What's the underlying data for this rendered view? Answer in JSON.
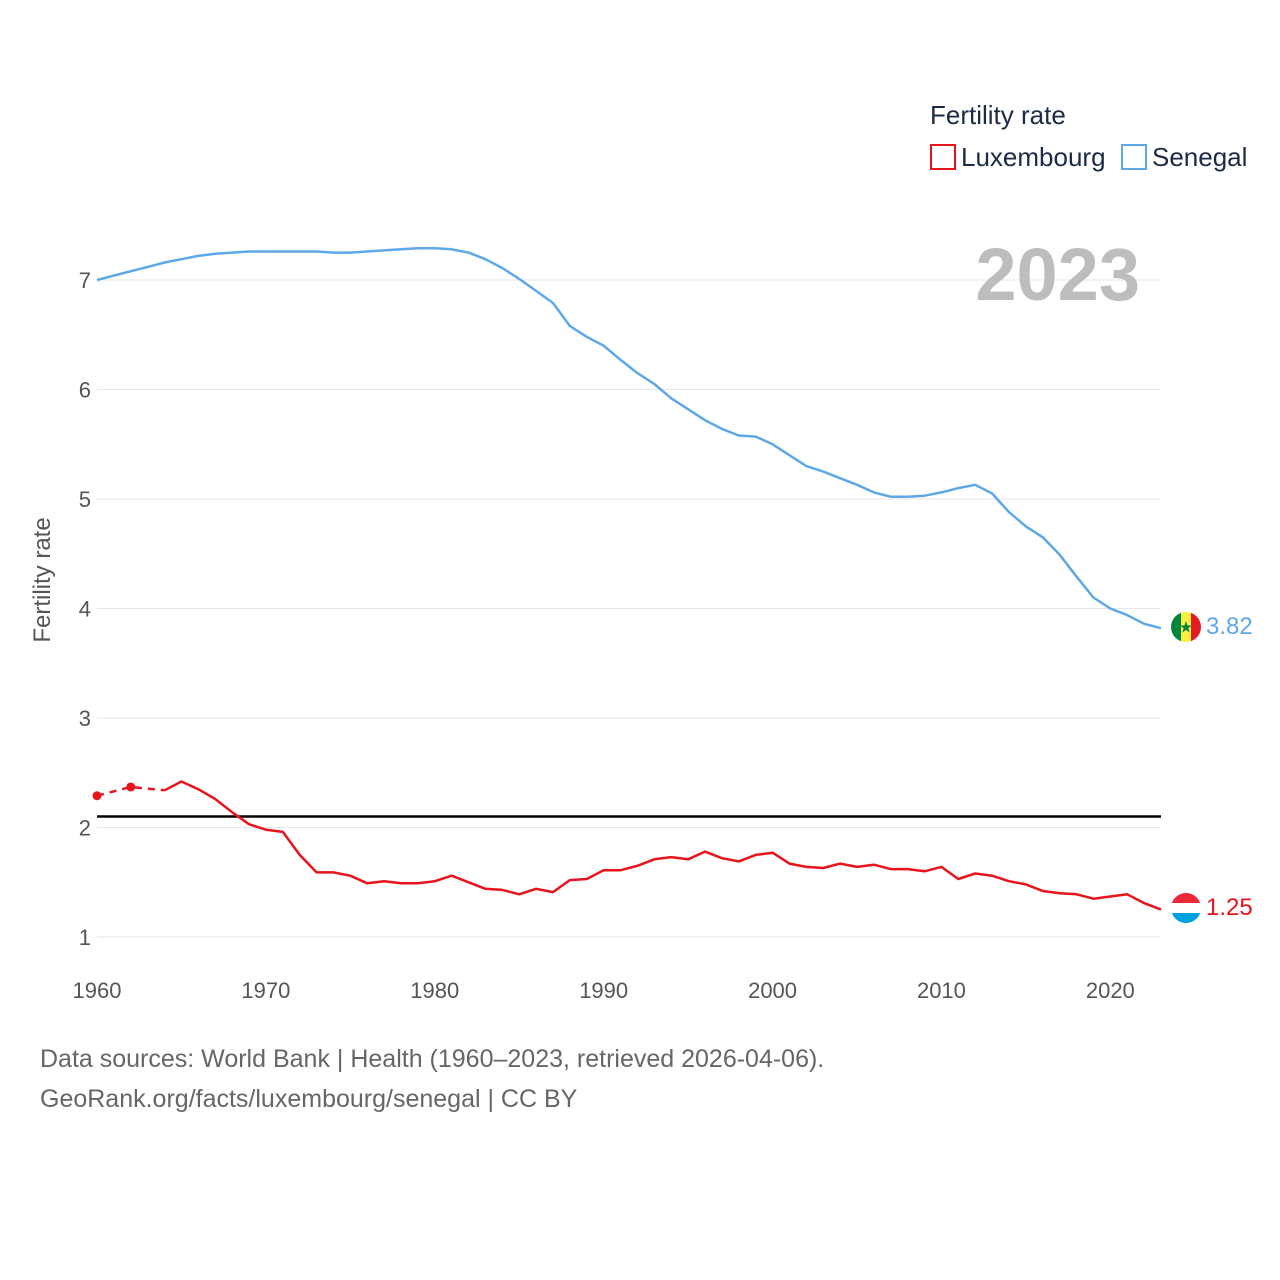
{
  "chart_data": {
    "type": "line",
    "title": "Fertility rate",
    "ylabel": "Fertility rate",
    "xlabel": "",
    "year_label": "2023",
    "xlim": [
      1960,
      2023
    ],
    "ylim": [
      0.85,
      7.6
    ],
    "x_ticks": [
      1960,
      1970,
      1980,
      1990,
      2000,
      2010,
      2020
    ],
    "y_ticks": [
      1,
      2,
      3,
      4,
      5,
      6,
      7
    ],
    "reference_line": {
      "value": 2.1,
      "color": "#000000"
    },
    "legend_position": "top-right",
    "series": [
      {
        "name": "Luxembourg",
        "color": "#e8141c",
        "end_label": "1.25",
        "dashed_points": [
          [
            1960,
            2.29
          ],
          [
            1962,
            2.37
          ],
          [
            1964,
            2.34
          ]
        ],
        "points": [
          [
            1964,
            2.34
          ],
          [
            1965,
            2.42
          ],
          [
            1966,
            2.35
          ],
          [
            1967,
            2.26
          ],
          [
            1968,
            2.14
          ],
          [
            1969,
            2.03
          ],
          [
            1970,
            1.98
          ],
          [
            1971,
            1.96
          ],
          [
            1972,
            1.75
          ],
          [
            1973,
            1.59
          ],
          [
            1974,
            1.59
          ],
          [
            1975,
            1.56
          ],
          [
            1976,
            1.49
          ],
          [
            1977,
            1.51
          ],
          [
            1978,
            1.49
          ],
          [
            1979,
            1.49
          ],
          [
            1980,
            1.51
          ],
          [
            1981,
            1.56
          ],
          [
            1982,
            1.5
          ],
          [
            1983,
            1.44
          ],
          [
            1984,
            1.43
          ],
          [
            1985,
            1.39
          ],
          [
            1986,
            1.44
          ],
          [
            1987,
            1.41
          ],
          [
            1988,
            1.52
          ],
          [
            1989,
            1.53
          ],
          [
            1990,
            1.61
          ],
          [
            1991,
            1.61
          ],
          [
            1992,
            1.65
          ],
          [
            1993,
            1.71
          ],
          [
            1994,
            1.73
          ],
          [
            1995,
            1.71
          ],
          [
            1996,
            1.78
          ],
          [
            1997,
            1.72
          ],
          [
            1998,
            1.69
          ],
          [
            1999,
            1.75
          ],
          [
            2000,
            1.77
          ],
          [
            2001,
            1.67
          ],
          [
            2002,
            1.64
          ],
          [
            2003,
            1.63
          ],
          [
            2004,
            1.67
          ],
          [
            2005,
            1.64
          ],
          [
            2006,
            1.66
          ],
          [
            2007,
            1.62
          ],
          [
            2008,
            1.62
          ],
          [
            2009,
            1.6
          ],
          [
            2010,
            1.64
          ],
          [
            2011,
            1.53
          ],
          [
            2012,
            1.58
          ],
          [
            2013,
            1.56
          ],
          [
            2014,
            1.51
          ],
          [
            2015,
            1.48
          ],
          [
            2016,
            1.42
          ],
          [
            2017,
            1.4
          ],
          [
            2018,
            1.39
          ],
          [
            2019,
            1.35
          ],
          [
            2020,
            1.37
          ],
          [
            2021,
            1.39
          ],
          [
            2022,
            1.31
          ],
          [
            2023,
            1.25
          ]
        ]
      },
      {
        "name": "Senegal",
        "color": "#5ea8e8",
        "end_label": "3.82",
        "points": [
          [
            1960,
            7.0
          ],
          [
            1961,
            7.04
          ],
          [
            1962,
            7.08
          ],
          [
            1963,
            7.12
          ],
          [
            1964,
            7.16
          ],
          [
            1965,
            7.19
          ],
          [
            1966,
            7.22
          ],
          [
            1967,
            7.24
          ],
          [
            1968,
            7.25
          ],
          [
            1969,
            7.26
          ],
          [
            1970,
            7.26
          ],
          [
            1971,
            7.26
          ],
          [
            1972,
            7.26
          ],
          [
            1973,
            7.26
          ],
          [
            1974,
            7.25
          ],
          [
            1975,
            7.25
          ],
          [
            1976,
            7.26
          ],
          [
            1977,
            7.27
          ],
          [
            1978,
            7.28
          ],
          [
            1979,
            7.29
          ],
          [
            1980,
            7.29
          ],
          [
            1981,
            7.28
          ],
          [
            1982,
            7.25
          ],
          [
            1983,
            7.19
          ],
          [
            1984,
            7.11
          ],
          [
            1985,
            7.01
          ],
          [
            1986,
            6.9
          ],
          [
            1987,
            6.79
          ],
          [
            1988,
            6.58
          ],
          [
            1989,
            6.48
          ],
          [
            1990,
            6.4
          ],
          [
            1991,
            6.27
          ],
          [
            1992,
            6.15
          ],
          [
            1993,
            6.05
          ],
          [
            1994,
            5.92
          ],
          [
            1995,
            5.82
          ],
          [
            1996,
            5.72
          ],
          [
            1997,
            5.64
          ],
          [
            1998,
            5.58
          ],
          [
            1999,
            5.57
          ],
          [
            2000,
            5.5
          ],
          [
            2001,
            5.4
          ],
          [
            2002,
            5.3
          ],
          [
            2003,
            5.25
          ],
          [
            2004,
            5.19
          ],
          [
            2005,
            5.13
          ],
          [
            2006,
            5.06
          ],
          [
            2007,
            5.02
          ],
          [
            2008,
            5.02
          ],
          [
            2009,
            5.03
          ],
          [
            2010,
            5.06
          ],
          [
            2011,
            5.1
          ],
          [
            2012,
            5.13
          ],
          [
            2013,
            5.05
          ],
          [
            2014,
            4.88
          ],
          [
            2015,
            4.75
          ],
          [
            2016,
            4.65
          ],
          [
            2017,
            4.49
          ],
          [
            2018,
            4.29
          ],
          [
            2019,
            4.1
          ],
          [
            2020,
            4.0
          ],
          [
            2021,
            3.94
          ],
          [
            2022,
            3.86
          ],
          [
            2023,
            3.82
          ]
        ]
      }
    ]
  },
  "sources": {
    "line1": "Data sources: World Bank | Health (1960–2023, retrieved 2026-04-06).",
    "line2": "GeoRank.org/facts/luxembourg/senegal | CC BY"
  }
}
